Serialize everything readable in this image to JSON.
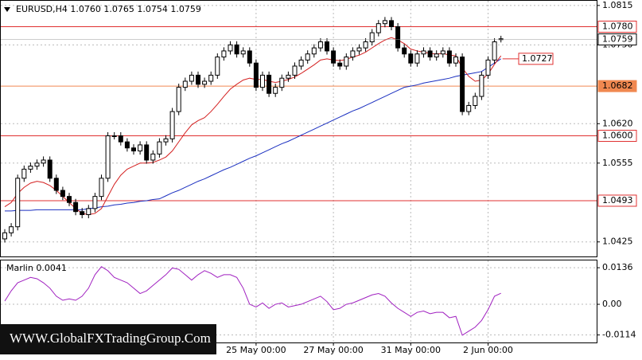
{
  "chart_data": {
    "type": "candlestick",
    "header": "EURUSD,H4  1.0760 1.0765 1.0754 1.0759",
    "watermark": "WWW.GlobalFXTradingGroup.Com",
    "categories": [
      null,
      null,
      null,
      null,
      null,
      null,
      null,
      null,
      null,
      null,
      null,
      null,
      null,
      null,
      null,
      null,
      null,
      null,
      null,
      null,
      null,
      null,
      null,
      null,
      null,
      null,
      null,
      null,
      null,
      null,
      null,
      null,
      null,
      null,
      null,
      null,
      null,
      null,
      null,
      "25 May 00:00",
      null,
      null,
      null,
      null,
      null,
      null,
      null,
      null,
      null,
      null,
      null,
      "27 May 00:00",
      null,
      null,
      null,
      null,
      null,
      null,
      null,
      null,
      null,
      null,
      null,
      "31 May 00:00",
      null,
      null,
      null,
      null,
      null,
      null,
      null,
      null,
      null,
      null,
      null,
      "2 Jun 00:00",
      null,
      null
    ],
    "open": [
      1.043,
      1.044,
      1.045,
      1.053,
      1.0545,
      1.055,
      1.0555,
      1.056,
      1.053,
      1.051,
      1.05,
      1.049,
      1.0475,
      1.047,
      1.048,
      1.05,
      1.053,
      1.06,
      1.06,
      1.059,
      1.058,
      1.0575,
      1.0585,
      1.056,
      1.057,
      1.059,
      1.0595,
      1.064,
      1.068,
      1.069,
      1.07,
      1.0685,
      1.069,
      1.07,
      1.073,
      1.074,
      1.075,
      1.0735,
      1.074,
      1.072,
      1.068,
      1.07,
      1.067,
      1.068,
      1.0695,
      1.07,
      1.0715,
      1.0725,
      1.0735,
      1.0745,
      1.0755,
      1.074,
      1.072,
      1.0715,
      1.073,
      1.074,
      1.0745,
      1.0755,
      1.077,
      1.0785,
      1.079,
      1.078,
      1.0745,
      1.0735,
      1.072,
      1.0735,
      1.074,
      1.073,
      1.0735,
      1.074,
      1.072,
      1.073,
      1.064,
      1.065,
      1.0665,
      1.07,
      1.0725,
      1.076
    ],
    "high": [
      1.0446,
      1.0456,
      1.0536,
      1.0551,
      1.0556,
      1.0561,
      1.0566,
      1.0566,
      1.0536,
      1.0516,
      1.0506,
      1.0496,
      1.0481,
      1.0486,
      1.0506,
      1.0536,
      1.0606,
      1.0606,
      1.0606,
      1.0596,
      1.0586,
      1.0591,
      1.0591,
      1.0576,
      1.0596,
      1.0601,
      1.0646,
      1.0686,
      1.0696,
      1.0706,
      1.0706,
      1.0696,
      1.0706,
      1.0736,
      1.0746,
      1.0756,
      1.0756,
      1.0746,
      1.0746,
      1.0726,
      1.0706,
      1.0706,
      1.0686,
      1.0701,
      1.0706,
      1.0721,
      1.0731,
      1.0741,
      1.0751,
      1.0761,
      1.0761,
      1.0746,
      1.0726,
      1.0736,
      1.0746,
      1.0751,
      1.0761,
      1.0776,
      1.0791,
      1.0796,
      1.0796,
      1.0786,
      1.0751,
      1.0741,
      1.0741,
      1.0746,
      1.0746,
      1.0741,
      1.0746,
      1.0746,
      1.0736,
      1.0736,
      1.0656,
      1.0671,
      1.0706,
      1.0731,
      1.0761,
      1.0765
    ],
    "low": [
      1.0424,
      1.0434,
      1.0444,
      1.0524,
      1.0539,
      1.0544,
      1.0549,
      1.0524,
      1.0504,
      1.0494,
      1.0484,
      1.0469,
      1.0464,
      1.0464,
      1.0474,
      1.0494,
      1.0524,
      1.0594,
      1.0584,
      1.0574,
      1.0569,
      1.0569,
      1.0554,
      1.0554,
      1.0564,
      1.0584,
      1.0589,
      1.0634,
      1.0674,
      1.0684,
      1.0679,
      1.0679,
      1.0684,
      1.0694,
      1.0724,
      1.0734,
      1.0729,
      1.0729,
      1.0714,
      1.0674,
      1.0674,
      1.0664,
      1.0664,
      1.0674,
      1.0689,
      1.0694,
      1.0709,
      1.0719,
      1.0729,
      1.0739,
      1.0734,
      1.0714,
      1.0709,
      1.0709,
      1.0724,
      1.0734,
      1.0739,
      1.0749,
      1.0764,
      1.0779,
      1.0774,
      1.0739,
      1.0729,
      1.0714,
      1.0714,
      1.0729,
      1.0724,
      1.0724,
      1.0729,
      1.0714,
      1.0714,
      1.0634,
      1.0634,
      1.0644,
      1.0659,
      1.0694,
      1.0719,
      1.0754
    ],
    "close": [
      1.044,
      1.045,
      1.053,
      1.0545,
      1.055,
      1.0555,
      1.056,
      1.053,
      1.051,
      1.05,
      1.049,
      1.0475,
      1.047,
      1.048,
      1.05,
      1.053,
      1.06,
      1.06,
      1.059,
      1.058,
      1.0575,
      1.0585,
      1.056,
      1.057,
      1.059,
      1.0595,
      1.064,
      1.068,
      1.069,
      1.07,
      1.0685,
      1.069,
      1.07,
      1.073,
      1.074,
      1.075,
      1.0735,
      1.074,
      1.072,
      1.068,
      1.07,
      1.067,
      1.068,
      1.0695,
      1.07,
      1.0715,
      1.0725,
      1.0735,
      1.0745,
      1.0755,
      1.074,
      1.072,
      1.0715,
      1.073,
      1.074,
      1.0745,
      1.0755,
      1.077,
      1.0785,
      1.079,
      1.078,
      1.0745,
      1.0735,
      1.072,
      1.0735,
      1.074,
      1.073,
      1.0735,
      1.074,
      1.072,
      1.073,
      1.064,
      1.065,
      1.0665,
      1.07,
      1.0725,
      1.0755,
      1.0759
    ],
    "ma_fast": {
      "color": "#d42020",
      "values": [
        1.0483,
        1.049,
        1.0505,
        1.0515,
        1.0522,
        1.0525,
        1.0523,
        1.0518,
        1.051,
        1.05,
        1.049,
        1.048,
        1.0472,
        1.047,
        1.0472,
        1.048,
        1.05,
        1.052,
        1.0535,
        1.0545,
        1.055,
        1.0555,
        1.0555,
        1.0556,
        1.056,
        1.0565,
        1.0575,
        1.059,
        1.0605,
        1.0618,
        1.0625,
        1.063,
        1.064,
        1.0652,
        1.0665,
        1.0677,
        1.0685,
        1.0692,
        1.0695,
        1.0693,
        1.0693,
        1.069,
        1.0688,
        1.069,
        1.0693,
        1.0697,
        1.0703,
        1.071,
        1.0717,
        1.0725,
        1.0727,
        1.0725,
        1.0724,
        1.0726,
        1.073,
        1.0733,
        1.0738,
        1.0745,
        1.0752,
        1.0758,
        1.0762,
        1.0758,
        1.0752,
        1.0743,
        1.074,
        1.0738,
        1.0736,
        1.0735,
        1.0736,
        1.0733,
        1.0732,
        1.0712,
        1.0698,
        1.069,
        1.0692,
        1.0702,
        1.0718,
        1.0732
      ]
    },
    "ma_slow": {
      "color": "#1a2fc0",
      "values": [
        1.0476,
        1.0476,
        1.0477,
        1.0477,
        1.0477,
        1.0478,
        1.0478,
        1.0478,
        1.0478,
        1.0478,
        1.0478,
        1.0478,
        1.0478,
        1.048,
        1.0481,
        1.0483,
        1.0484,
        1.0486,
        1.0487,
        1.0489,
        1.049,
        1.0492,
        1.0493,
        1.0495,
        1.0496,
        1.0501,
        1.0506,
        1.051,
        1.0515,
        1.052,
        1.0525,
        1.0529,
        1.0534,
        1.0539,
        1.0544,
        1.0548,
        1.0553,
        1.0558,
        1.0563,
        1.0567,
        1.0572,
        1.0577,
        1.0582,
        1.0587,
        1.0591,
        1.0596,
        1.0601,
        1.0606,
        1.0611,
        1.0616,
        1.0621,
        1.0626,
        1.0631,
        1.0636,
        1.0641,
        1.0645,
        1.065,
        1.0655,
        1.066,
        1.0665,
        1.067,
        1.0675,
        1.068,
        1.0682,
        1.0684,
        1.0687,
        1.0689,
        1.0691,
        1.0693,
        1.0695,
        1.0698,
        1.07,
        1.0702,
        1.0704,
        1.0706,
        1.0713,
        1.072,
        1.0727
      ]
    },
    "ylim": [
      1.0401,
      1.0824
    ],
    "yticks": [
      1.0425,
      1.0555,
      {
        "value": 1.062,
        "label": "1.0620"
      },
      {
        "value": 1.075,
        "label": "1.0750"
      },
      1.0815
    ],
    "grid": true,
    "levels": [
      {
        "value": 1.078,
        "label": "1.0780",
        "color": "#e03030"
      },
      {
        "value": 1.0682,
        "label": "1.0682",
        "color": "#f08850"
      },
      {
        "value": 1.06,
        "label": "1.0600",
        "color": "#e03030"
      },
      {
        "value": 1.0493,
        "label": "1.0493",
        "color": "#e03030"
      }
    ],
    "current_price": 1.0759,
    "annotation": {
      "value": 1.0727,
      "color": "#e03030"
    },
    "indicator": {
      "label": "Marlin 0.0041",
      "color": "#a020c0",
      "ylim": [
        -0.0142,
        0.0166
      ],
      "yticks": [
        -0.0114,
        {
          "value": 0,
          "label": "0.00"
        },
        0.0136
      ],
      "values": [
        0.0012,
        0.005,
        0.008,
        0.009,
        0.01,
        0.0095,
        0.008,
        0.006,
        0.003,
        0.0015,
        0.002,
        0.0015,
        0.003,
        0.006,
        0.011,
        0.014,
        0.0125,
        0.01,
        0.009,
        0.008,
        0.006,
        0.004,
        0.005,
        0.007,
        0.009,
        0.011,
        0.0135,
        0.013,
        0.011,
        0.009,
        0.011,
        0.0125,
        0.0115,
        0.01,
        0.011,
        0.011,
        0.01,
        0.006,
        0.0,
        -0.001,
        0.0005,
        -0.0015,
        0.0,
        0.0005,
        -0.001,
        -0.0005,
        0.0,
        0.001,
        0.002,
        0.003,
        0.001,
        -0.002,
        -0.0015,
        0.0,
        0.0005,
        0.0015,
        0.0025,
        0.0035,
        0.004,
        0.003,
        0.0005,
        -0.0015,
        -0.003,
        -0.0045,
        -0.003,
        -0.0025,
        -0.0035,
        -0.003,
        -0.003,
        -0.005,
        -0.0045,
        -0.0115,
        -0.01,
        -0.0085,
        -0.006,
        -0.002,
        0.003,
        0.0041
      ]
    }
  }
}
